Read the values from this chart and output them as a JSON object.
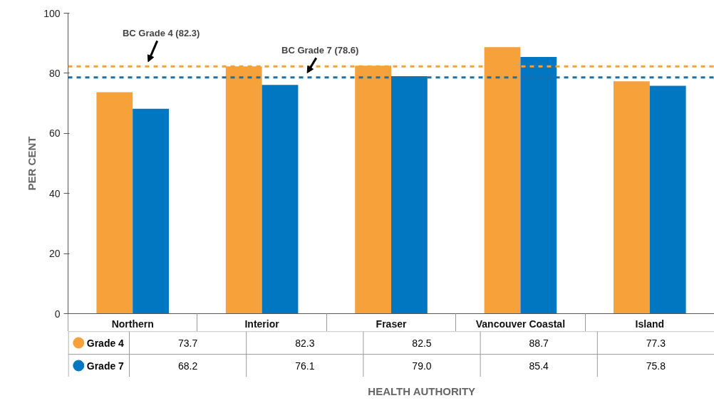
{
  "chart_data": {
    "type": "bar",
    "annotations": [
      "HEALTH AUTHORITY"
    ],
    "ylabel": "PER CENT",
    "categories": [
      "Northern",
      "Interior",
      "Fraser",
      "Vancouver Coastal",
      "Island"
    ],
    "series": [
      {
        "name": "Grade 4",
        "color": "#f6a13a",
        "values": [
          73.7,
          82.3,
          82.5,
          88.7,
          77.3
        ],
        "value_labels": [
          "73.7",
          "82.3",
          "82.5",
          "88.7",
          "77.3"
        ]
      },
      {
        "name": "Grade 7",
        "color": "#0077c0",
        "values": [
          68.2,
          76.1,
          79.0,
          85.4,
          75.8
        ],
        "value_labels": [
          "68.2",
          "76.1",
          "79.0",
          "85.4",
          "75.8"
        ]
      }
    ],
    "ylim": [
      0,
      100
    ],
    "yticks": [
      0,
      20,
      40,
      60,
      80,
      100
    ],
    "grid": false,
    "legend": "bottom",
    "ref_lines": [
      {
        "axis": "y",
        "value": 82.3,
        "label": "BC Grade 4 (82.3)",
        "color": "#f6a13a",
        "line_style": "dashed"
      },
      {
        "axis": "y",
        "value": 78.6,
        "label": "BC Grade 7 (78.6)",
        "color": "#1d6fa8",
        "line_style": "dashed"
      }
    ]
  }
}
